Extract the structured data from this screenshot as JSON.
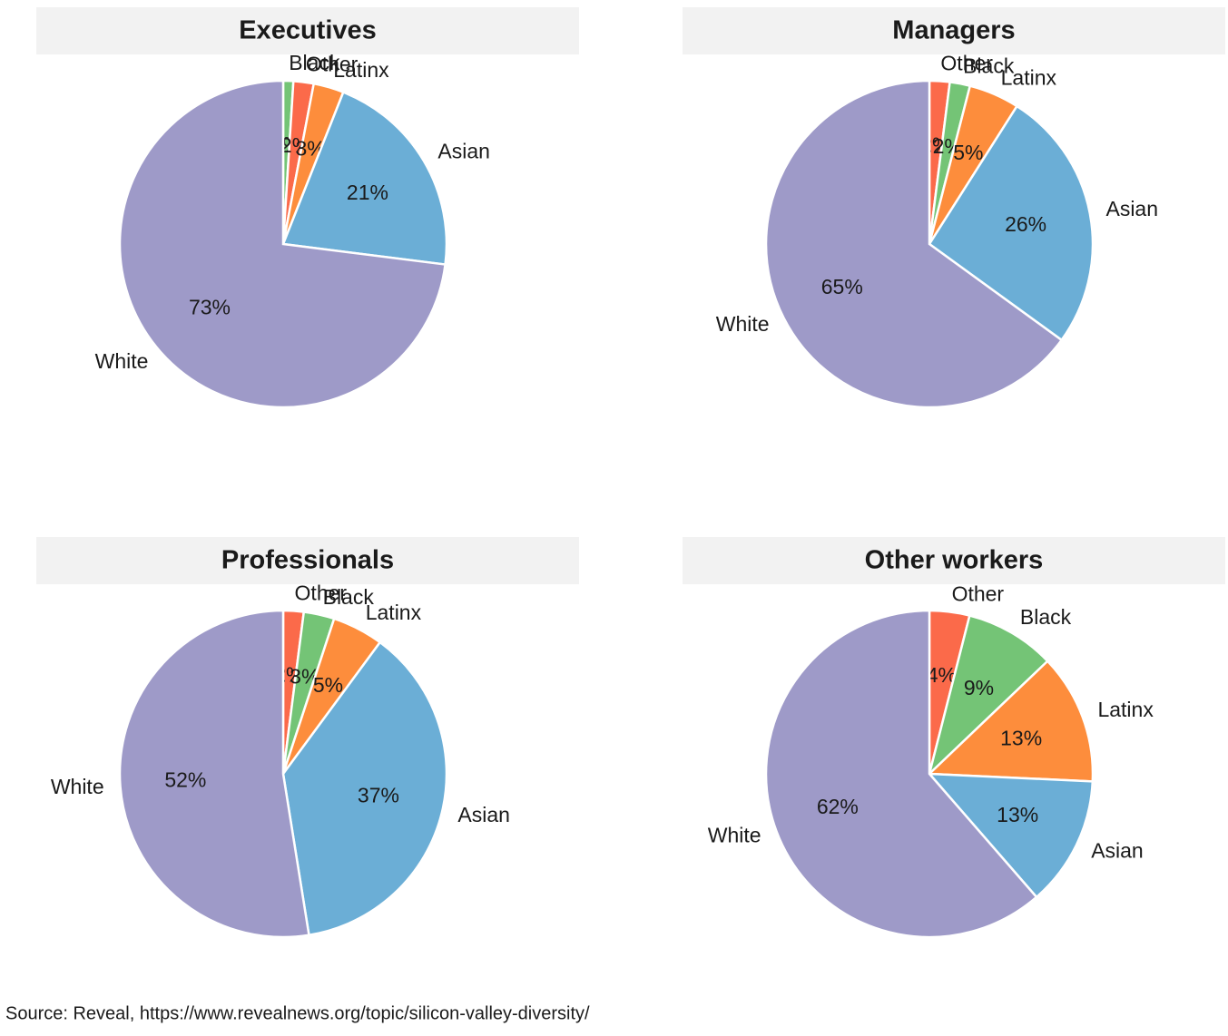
{
  "chart_data": [
    {
      "type": "pie",
      "title": "Executives",
      "categories": [
        "Black",
        "Other",
        "Latinx",
        "Asian",
        "White"
      ],
      "values": [
        1,
        2,
        3,
        21,
        73
      ],
      "value_labels": [
        "1%",
        "2%",
        "3%",
        "21%",
        "73%"
      ],
      "colors": [
        "#74c476",
        "#fb6a4a",
        "#fd8d3c",
        "#6baed6",
        "#9e9ac8"
      ]
    },
    {
      "type": "pie",
      "title": "Managers",
      "categories": [
        "Other",
        "Black",
        "Latinx",
        "Asian",
        "White"
      ],
      "values": [
        2,
        2,
        5,
        26,
        65
      ],
      "value_labels": [
        "2%",
        "2%",
        "5%",
        "26%",
        "65%"
      ],
      "colors": [
        "#fb6a4a",
        "#74c476",
        "#fd8d3c",
        "#6baed6",
        "#9e9ac8"
      ]
    },
    {
      "type": "pie",
      "title": "Professionals",
      "categories": [
        "Other",
        "Black",
        "Latinx",
        "Asian",
        "White"
      ],
      "values": [
        2,
        3,
        5,
        37,
        52
      ],
      "value_labels": [
        "2%",
        "3%",
        "5%",
        "37%",
        "52%"
      ],
      "colors": [
        "#fb6a4a",
        "#74c476",
        "#fd8d3c",
        "#6baed6",
        "#9e9ac8"
      ]
    },
    {
      "type": "pie",
      "title": "Other workers",
      "categories": [
        "Other",
        "Black",
        "Latinx",
        "Asian",
        "White"
      ],
      "values": [
        4,
        9,
        13,
        13,
        62
      ],
      "value_labels": [
        "4%",
        "9%",
        "13%",
        "13%",
        "62%"
      ],
      "colors": [
        "#fb6a4a",
        "#74c476",
        "#fd8d3c",
        "#6baed6",
        "#9e9ac8"
      ]
    }
  ],
  "source": "Source: Reveal, https://www.revealnews.org/topic/silicon-valley-diversity/"
}
